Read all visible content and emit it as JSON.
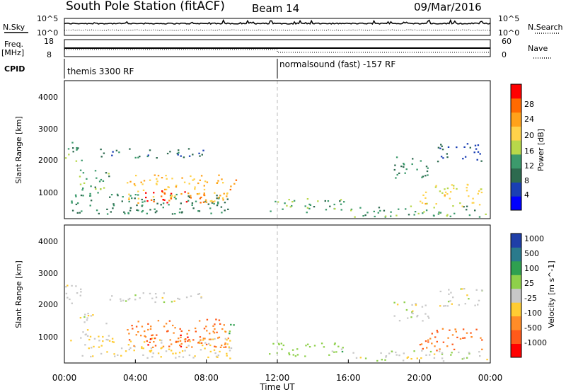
{
  "header": {
    "title": "South Pole Station (fitACF)",
    "beam": "Beam 14",
    "date": "09/Mar/2016"
  },
  "noise_panel": {
    "left_label": "N.Sky",
    "right_label": "N.Search",
    "left_ticks": [
      "10^5",
      "10^0"
    ],
    "right_ticks": [
      "10^5",
      "10^0"
    ]
  },
  "freq_panel": {
    "left_label_line1": "Freq.",
    "left_label_line2": "[MHz]",
    "right_label": "Nave",
    "left_ticks": [
      "18",
      "8"
    ],
    "right_ticks": [
      "60",
      "0"
    ]
  },
  "cpid_panel": {
    "label": "CPID",
    "segments": [
      "themis 3300 RF",
      "normalsound (fast) -157 RF"
    ]
  },
  "x_axis": {
    "label": "Time UT",
    "ticks": [
      "00:00",
      "04:00",
      "08:00",
      "12:00",
      "16:00",
      "20:00",
      "00:00"
    ]
  },
  "colors": {
    "power_scale": [
      "#0000ff",
      "#1a3fb4",
      "#2d6a4f",
      "#3c9a6c",
      "#b8d84a",
      "#ffd24a",
      "#ffa21a",
      "#ff6a00",
      "#ff0000"
    ],
    "velocity_scale": [
      "#ff0000",
      "#ff5a1a",
      "#ff8c28",
      "#ffcc33",
      "#c8c8c8",
      "#8ed04a",
      "#2fa050",
      "#2a7a8c",
      "#1f3fa8"
    ]
  },
  "chart_data": [
    {
      "type": "heatmap",
      "name": "power",
      "ylabel": "Slant Range [km]",
      "xlabel": "",
      "yticks": [
        "1000",
        "2000",
        "3000",
        "4000"
      ],
      "ylim": [
        180,
        4600
      ],
      "xlim_hours": [
        0,
        24
      ],
      "colorbar_label": "Power [dB]",
      "colorbar_ticks": [
        "4",
        "8",
        "12",
        "16",
        "20",
        "24",
        "28"
      ],
      "colorbar_range": [
        0,
        30
      ],
      "regions": [
        {
          "t": [
            0.0,
            1.0
          ],
          "r": [
            2000,
            2700
          ],
          "v": 12
        },
        {
          "t": [
            0.3,
            9.5
          ],
          "r": [
            350,
            1000
          ],
          "v": 10
        },
        {
          "t": [
            3.5,
            9.2
          ],
          "r": [
            700,
            1600
          ],
          "v": 20
        },
        {
          "t": [
            4.5,
            8.0
          ],
          "r": [
            700,
            1100
          ],
          "v": 26
        },
        {
          "t": [
            2.0,
            8.0
          ],
          "r": [
            2150,
            2450
          ],
          "v": 8
        },
        {
          "t": [
            0.8,
            2.5
          ],
          "r": [
            900,
            1800
          ],
          "v": 12
        },
        {
          "t": [
            9.2,
            9.8
          ],
          "r": [
            1100,
            1500
          ],
          "v": 24
        },
        {
          "t": [
            11.5,
            15.8
          ],
          "r": [
            400,
            850
          ],
          "v": 12
        },
        {
          "t": [
            16.0,
            23.8
          ],
          "r": [
            250,
            600
          ],
          "v": 12
        },
        {
          "t": [
            20.0,
            23.5
          ],
          "r": [
            600,
            1300
          ],
          "v": 18
        },
        {
          "t": [
            21.0,
            23.5
          ],
          "r": [
            2000,
            2600
          ],
          "v": 6
        },
        {
          "t": [
            18.5,
            20.5
          ],
          "r": [
            1500,
            2200
          ],
          "v": 10
        }
      ]
    },
    {
      "type": "heatmap",
      "name": "velocity",
      "ylabel": "Slant Range [km]",
      "xlabel": "Time UT",
      "yticks": [
        "1000",
        "2000",
        "3000",
        "4000"
      ],
      "ylim": [
        180,
        4600
      ],
      "xlim_hours": [
        0,
        24
      ],
      "colorbar_label": "Velocity [m s^-1]",
      "colorbar_ticks": [
        "-1000",
        "-500",
        "-100",
        "-25",
        "25",
        "100",
        "500",
        "1000"
      ],
      "colorbar_range": [
        -1200,
        1200
      ],
      "regions": [
        {
          "t": [
            0.0,
            1.0
          ],
          "r": [
            2000,
            2700
          ],
          "v": 0
        },
        {
          "t": [
            0.3,
            9.5
          ],
          "r": [
            350,
            1000
          ],
          "v": -200
        },
        {
          "t": [
            3.5,
            9.2
          ],
          "r": [
            700,
            1600
          ],
          "v": -600
        },
        {
          "t": [
            4.5,
            8.0
          ],
          "r": [
            700,
            1100
          ],
          "v": -800
        },
        {
          "t": [
            2.0,
            8.0
          ],
          "r": [
            2150,
            2450
          ],
          "v": 0
        },
        {
          "t": [
            0.8,
            2.5
          ],
          "r": [
            900,
            1800
          ],
          "v": -60
        },
        {
          "t": [
            9.2,
            9.8
          ],
          "r": [
            1100,
            1500
          ],
          "v": 400
        },
        {
          "t": [
            11.5,
            15.8
          ],
          "r": [
            400,
            850
          ],
          "v": 300
        },
        {
          "t": [
            16.0,
            23.8
          ],
          "r": [
            250,
            600
          ],
          "v": 40
        },
        {
          "t": [
            20.0,
            23.5
          ],
          "r": [
            600,
            1300
          ],
          "v": -700
        },
        {
          "t": [
            21.0,
            23.5
          ],
          "r": [
            2000,
            2600
          ],
          "v": 0
        },
        {
          "t": [
            18.5,
            20.5
          ],
          "r": [
            1500,
            2200
          ],
          "v": 0
        }
      ]
    }
  ]
}
